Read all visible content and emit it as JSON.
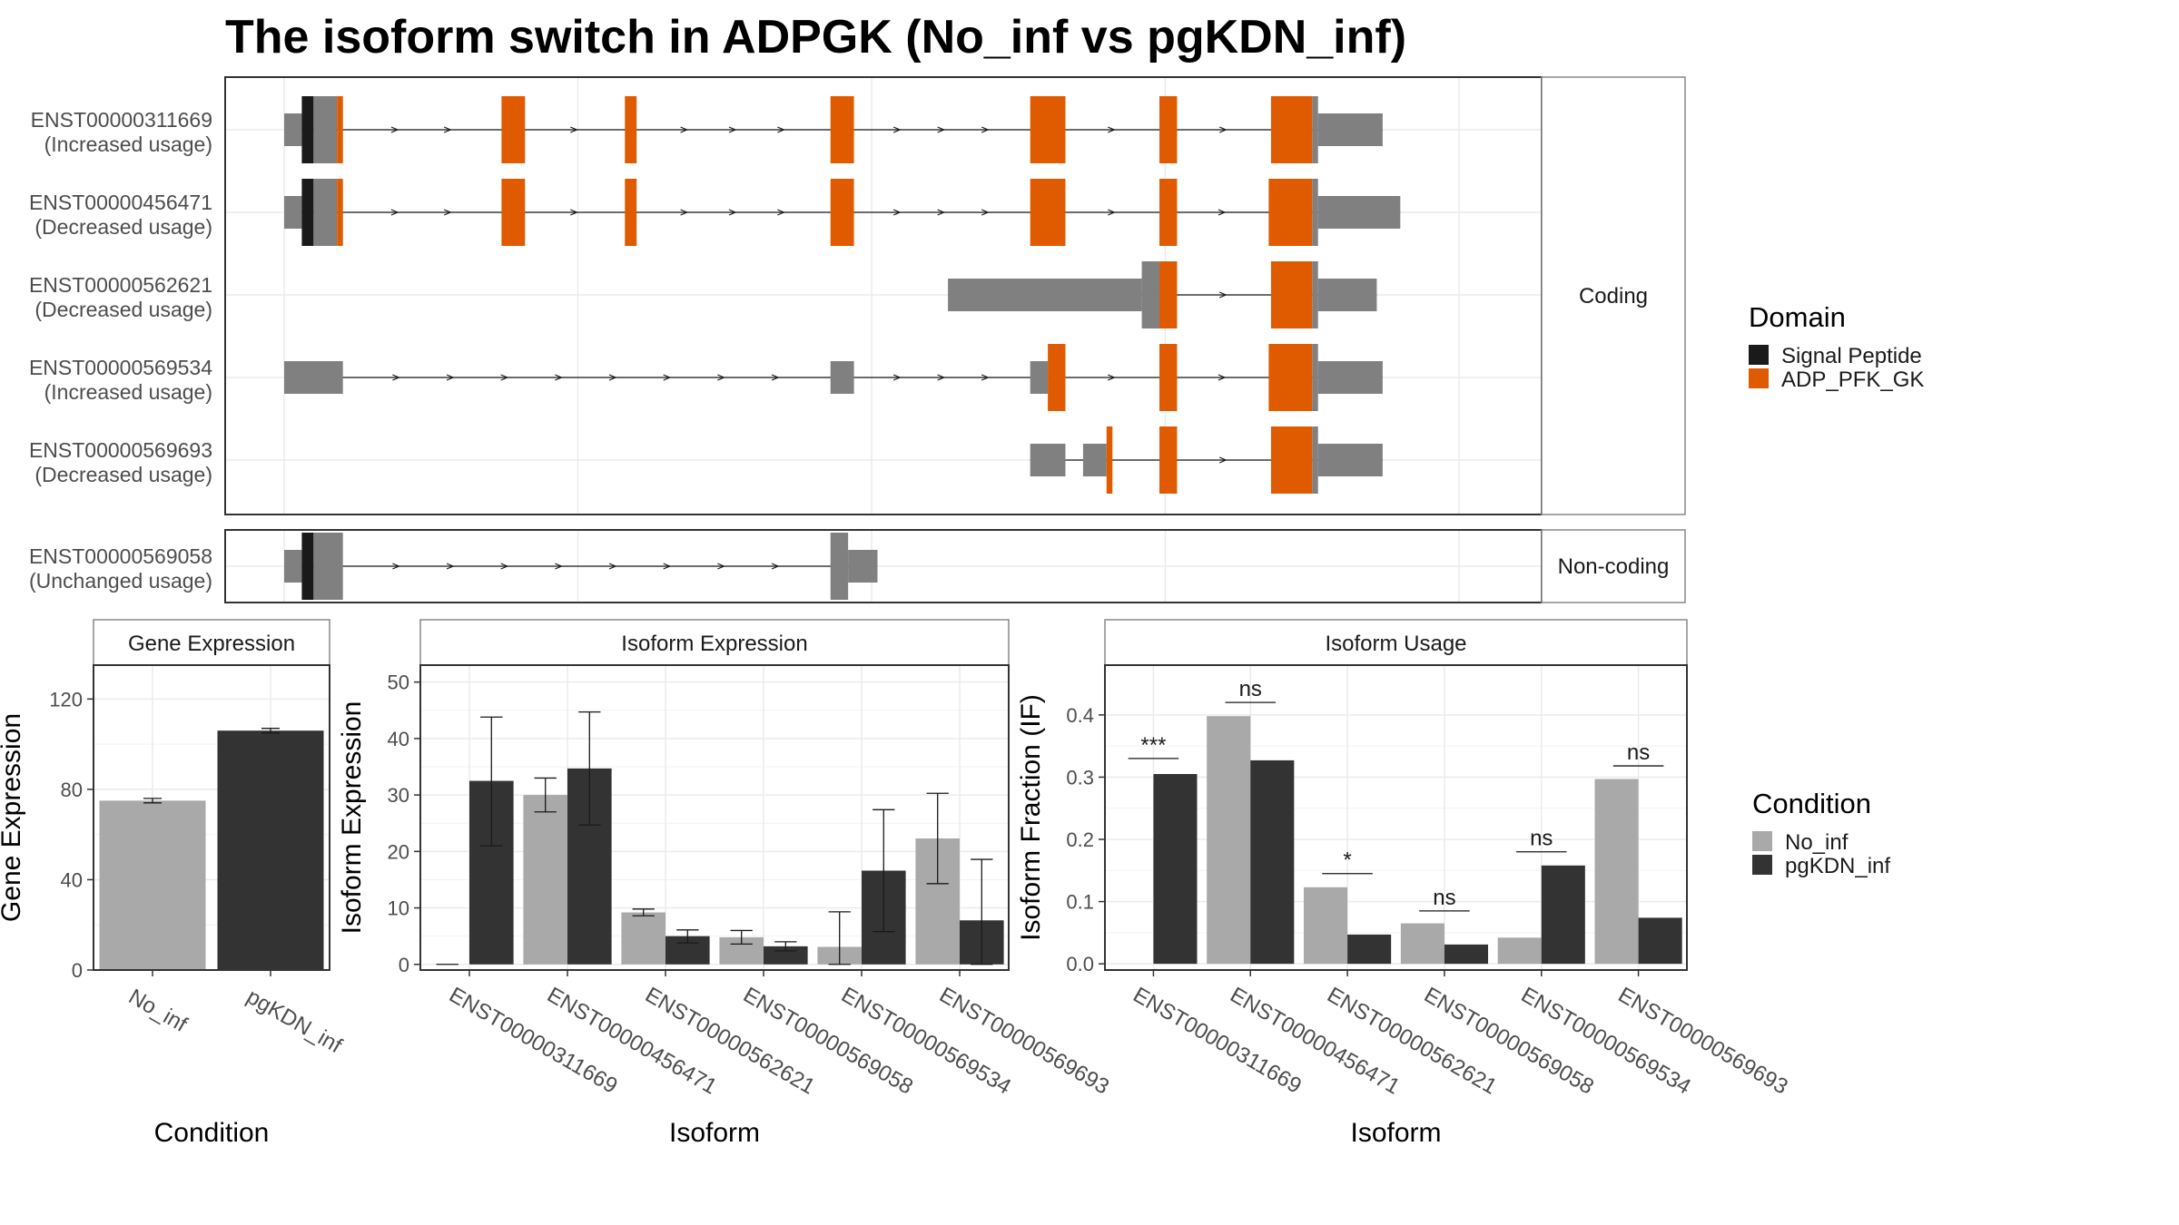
{
  "title": "The isoform switch in ADPGK (No_inf vs pgKDN_inf)",
  "colors": {
    "utr": "#808080",
    "signal_peptide": "#1a1a1a",
    "adp_pfk_gk": "#e05a00",
    "no_inf": "#a9a9a9",
    "pgkdn_inf": "#333333",
    "panel_border": "#333333",
    "strip_border": "#888888",
    "grid_major": "#ebebeb"
  },
  "structure": {
    "coding_strip": "Coding",
    "noncoding_strip": "Non-coding",
    "x_range": [
      0,
      100
    ],
    "transcripts": [
      {
        "id": "ENST00000311669",
        "usage": "(Increased usage)",
        "group": "coding",
        "blocks": [
          {
            "s": 0,
            "e": 1.5,
            "k": "utr",
            "h": "s"
          },
          {
            "s": 1.5,
            "e": 2.5,
            "k": "sig",
            "h": "t"
          },
          {
            "s": 2.5,
            "e": 4.5,
            "k": "utr",
            "h": "t"
          },
          {
            "s": 4.5,
            "e": 5,
            "k": "adp",
            "h": "t"
          },
          {
            "s": 18.5,
            "e": 20.5,
            "k": "adp",
            "h": "t"
          },
          {
            "s": 29,
            "e": 30,
            "k": "adp",
            "h": "t"
          },
          {
            "s": 46.5,
            "e": 48.5,
            "k": "adp",
            "h": "t"
          },
          {
            "s": 63.5,
            "e": 66.5,
            "k": "adp",
            "h": "t"
          },
          {
            "s": 74.5,
            "e": 76,
            "k": "adp",
            "h": "t"
          },
          {
            "s": 84,
            "e": 87.5,
            "k": "adp",
            "h": "t"
          },
          {
            "s": 87.5,
            "e": 88,
            "k": "utr",
            "h": "t"
          },
          {
            "s": 88,
            "e": 93.5,
            "k": "utr",
            "h": "s"
          }
        ]
      },
      {
        "id": "ENST00000456471",
        "usage": "(Decreased usage)",
        "group": "coding",
        "blocks": [
          {
            "s": 0,
            "e": 1.5,
            "k": "utr",
            "h": "s"
          },
          {
            "s": 1.5,
            "e": 2.5,
            "k": "sig",
            "h": "t"
          },
          {
            "s": 2.5,
            "e": 4.5,
            "k": "utr",
            "h": "t"
          },
          {
            "s": 4.5,
            "e": 5,
            "k": "adp",
            "h": "t"
          },
          {
            "s": 18.5,
            "e": 20.5,
            "k": "adp",
            "h": "t"
          },
          {
            "s": 29,
            "e": 30,
            "k": "adp",
            "h": "t"
          },
          {
            "s": 46.5,
            "e": 48.5,
            "k": "adp",
            "h": "t"
          },
          {
            "s": 63.5,
            "e": 66.5,
            "k": "adp",
            "h": "t"
          },
          {
            "s": 74.5,
            "e": 76,
            "k": "adp",
            "h": "t"
          },
          {
            "s": 83.8,
            "e": 87.5,
            "k": "adp",
            "h": "t"
          },
          {
            "s": 87.5,
            "e": 88,
            "k": "utr",
            "h": "t"
          },
          {
            "s": 88,
            "e": 95,
            "k": "utr",
            "h": "s"
          }
        ]
      },
      {
        "id": "ENST00000562621",
        "usage": "(Decreased usage)",
        "group": "coding",
        "blocks": [
          {
            "s": 56.5,
            "e": 73,
            "k": "utr",
            "h": "s"
          },
          {
            "s": 73,
            "e": 74.5,
            "k": "utr",
            "h": "t"
          },
          {
            "s": 74.5,
            "e": 76,
            "k": "adp",
            "h": "t"
          },
          {
            "s": 84,
            "e": 87.5,
            "k": "adp",
            "h": "t"
          },
          {
            "s": 87.5,
            "e": 88,
            "k": "utr",
            "h": "t"
          },
          {
            "s": 88,
            "e": 93,
            "k": "utr",
            "h": "s"
          }
        ]
      },
      {
        "id": "ENST00000569534",
        "usage": "(Increased usage)",
        "group": "coding",
        "blocks": [
          {
            "s": 0,
            "e": 5,
            "k": "utr",
            "h": "s"
          },
          {
            "s": 46.5,
            "e": 48.5,
            "k": "utr",
            "h": "s"
          },
          {
            "s": 63.5,
            "e": 65,
            "k": "utr",
            "h": "s"
          },
          {
            "s": 65,
            "e": 66.5,
            "k": "adp",
            "h": "t"
          },
          {
            "s": 74.5,
            "e": 76,
            "k": "adp",
            "h": "t"
          },
          {
            "s": 83.8,
            "e": 87.5,
            "k": "adp",
            "h": "t"
          },
          {
            "s": 87.5,
            "e": 88,
            "k": "utr",
            "h": "t"
          },
          {
            "s": 88,
            "e": 93.5,
            "k": "utr",
            "h": "s"
          }
        ]
      },
      {
        "id": "ENST00000569693",
        "usage": "(Decreased usage)",
        "group": "coding",
        "blocks": [
          {
            "s": 63.5,
            "e": 66.5,
            "k": "utr",
            "h": "s"
          },
          {
            "s": 68,
            "e": 70,
            "k": "utr",
            "h": "s"
          },
          {
            "s": 70,
            "e": 70.5,
            "k": "adp",
            "h": "t"
          },
          {
            "s": 74.5,
            "e": 76,
            "k": "adp",
            "h": "t"
          },
          {
            "s": 84,
            "e": 87.5,
            "k": "adp",
            "h": "t"
          },
          {
            "s": 87.5,
            "e": 88,
            "k": "utr",
            "h": "t"
          },
          {
            "s": 88,
            "e": 93.5,
            "k": "utr",
            "h": "s"
          }
        ]
      },
      {
        "id": "ENST00000569058",
        "usage": "(Unchanged usage)",
        "group": "noncoding",
        "blocks": [
          {
            "s": 0,
            "e": 1.5,
            "k": "utr",
            "h": "s"
          },
          {
            "s": 1.5,
            "e": 2.5,
            "k": "sig",
            "h": "t"
          },
          {
            "s": 2.5,
            "e": 5,
            "k": "utr",
            "h": "t"
          },
          {
            "s": 46.5,
            "e": 48,
            "k": "utr",
            "h": "t"
          },
          {
            "s": 48,
            "e": 50.5,
            "k": "utr",
            "h": "s"
          }
        ]
      }
    ]
  },
  "domain_legend": {
    "title": "Domain",
    "items": [
      {
        "label": "Signal Peptide",
        "color": "#1a1a1a"
      },
      {
        "label": "ADP_PFK_GK",
        "color": "#e05a00"
      }
    ]
  },
  "condition_legend": {
    "title": "Condition",
    "items": [
      {
        "label": "No_inf",
        "color": "#a9a9a9"
      },
      {
        "label": "pgKDN_inf",
        "color": "#333333"
      }
    ]
  },
  "chart_data": [
    {
      "type": "bar",
      "title": "Gene Expression",
      "xlabel": "Condition",
      "ylabel": "Gene Expression",
      "ylim": [
        0,
        135
      ],
      "yticks": [
        0,
        40,
        80,
        120
      ],
      "categories": [
        "No_inf",
        "pgKDN_inf"
      ],
      "values": [
        75,
        106
      ],
      "errors": [
        [
          74,
          76
        ],
        [
          105,
          107
        ]
      ]
    },
    {
      "type": "bar",
      "title": "Isoform Expression",
      "xlabel": "Isoform",
      "ylabel": "Isoform Expression",
      "ylim": [
        -1,
        53
      ],
      "yticks": [
        0,
        10,
        20,
        30,
        40,
        50
      ],
      "categories": [
        "ENST00000311669",
        "ENST00000456471",
        "ENST00000562621",
        "ENST00000569058",
        "ENST00000569534",
        "ENST00000569693"
      ],
      "series": [
        {
          "name": "No_inf",
          "values": [
            0,
            30,
            9.2,
            4.8,
            3.1,
            22.3
          ],
          "errors": [
            [
              0,
              0
            ],
            [
              27,
              33
            ],
            [
              8.6,
              9.8
            ],
            [
              3.6,
              6.0
            ],
            [
              0,
              9.3
            ],
            [
              14.3,
              30.3
            ]
          ]
        },
        {
          "name": "pgKDN_inf",
          "values": [
            32.5,
            34.7,
            5,
            3.2,
            16.6,
            7.8
          ],
          "errors": [
            [
              21,
              43.8
            ],
            [
              24.7,
              44.7
            ],
            [
              3.8,
              6.1
            ],
            [
              2.4,
              4
            ],
            [
              5.8,
              27.4
            ],
            [
              0,
              18.6
            ]
          ]
        }
      ]
    },
    {
      "type": "bar",
      "title": "Isoform Usage",
      "xlabel": "Isoform",
      "ylabel": "Isoform Fraction (IF)",
      "ylim": [
        -0.01,
        0.48
      ],
      "yticks": [
        0.0,
        0.1,
        0.2,
        0.3,
        0.4
      ],
      "categories": [
        "ENST00000311669",
        "ENST00000456471",
        "ENST00000562621",
        "ENST00000569058",
        "ENST00000569534",
        "ENST00000569693"
      ],
      "series": [
        {
          "name": "No_inf",
          "values": [
            0,
            0.398,
            0.123,
            0.065,
            0.042,
            0.297
          ]
        },
        {
          "name": "pgKDN_inf",
          "values": [
            0.305,
            0.327,
            0.047,
            0.031,
            0.158,
            0.074
          ]
        }
      ],
      "significance": [
        {
          "label": "***",
          "y": 0.33
        },
        {
          "label": "ns",
          "y": 0.42
        },
        {
          "label": "*",
          "y": 0.145
        },
        {
          "label": "ns",
          "y": 0.085
        },
        {
          "label": "ns",
          "y": 0.18
        },
        {
          "label": "ns",
          "y": 0.318
        }
      ]
    }
  ]
}
